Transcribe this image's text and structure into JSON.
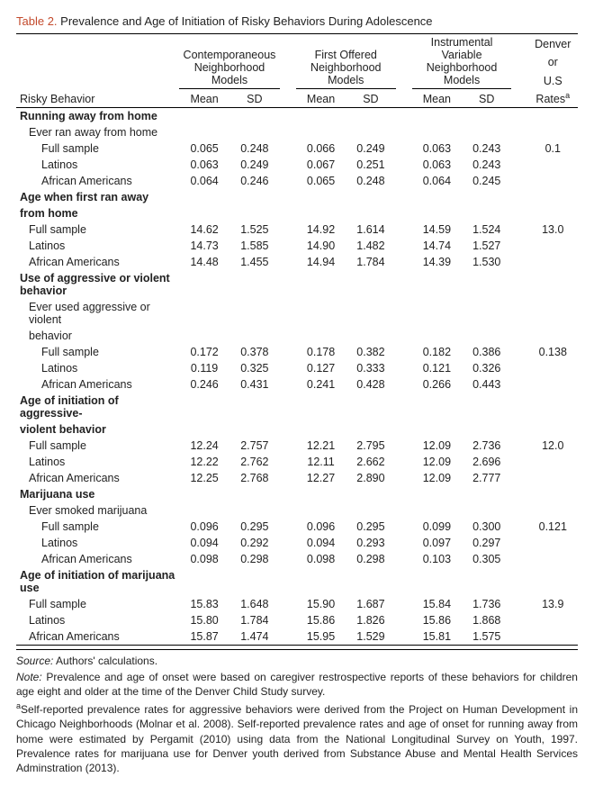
{
  "title_label": "Table 2.",
  "title_text": "Prevalence and Age of Initiation of Risky Behaviors During Adolescence",
  "col_group_1": "Contemporaneous Neighborhood Models",
  "col_group_2": "First Offered Neighborhood Models",
  "col_group_3": "Instrumental Variable Neighborhood Models",
  "col_group_4a": "Denver",
  "col_group_4b": "or",
  "col_group_4c": "U.S",
  "col_group_4d": "Rates",
  "rowhead": "Risky Behavior",
  "mean": "Mean",
  "sd": "SD",
  "sections": {
    "run": {
      "head": "Running away from home",
      "sub": "Ever ran away from home",
      "rows": [
        {
          "l": "Full sample",
          "m1": "0.065",
          "s1": "0.248",
          "m2": "0.066",
          "s2": "0.249",
          "m3": "0.063",
          "s3": "0.243",
          "r": "0.1"
        },
        {
          "l": "Latinos",
          "m1": "0.063",
          "s1": "0.249",
          "m2": "0.067",
          "s2": "0.251",
          "m3": "0.063",
          "s3": "0.243",
          "r": ""
        },
        {
          "l": "African Americans",
          "m1": "0.064",
          "s1": "0.246",
          "m2": "0.065",
          "s2": "0.248",
          "m3": "0.064",
          "s3": "0.245",
          "r": ""
        }
      ]
    },
    "agerun": {
      "head1": "Age when first ran away",
      "head2": "from home",
      "rows": [
        {
          "l": "Full sample",
          "m1": "14.62",
          "s1": "1.525",
          "m2": "14.92",
          "s2": "1.614",
          "m3": "14.59",
          "s3": "1.524",
          "r": "13.0"
        },
        {
          "l": "Latinos",
          "m1": "14.73",
          "s1": "1.585",
          "m2": "14.90",
          "s2": "1.482",
          "m3": "14.74",
          "s3": "1.527",
          "r": ""
        },
        {
          "l": "African Americans",
          "m1": "14.48",
          "s1": "1.455",
          "m2": "14.94",
          "s2": "1.784",
          "m3": "14.39",
          "s3": "1.530",
          "r": ""
        }
      ]
    },
    "agg": {
      "head": "Use of aggressive or violent behavior",
      "sub1": "Ever used aggressive or violent",
      "sub2": "behavior",
      "rows": [
        {
          "l": "Full sample",
          "m1": "0.172",
          "s1": "0.378",
          "m2": "0.178",
          "s2": "0.382",
          "m3": "0.182",
          "s3": "0.386",
          "r": "0.138"
        },
        {
          "l": "Latinos",
          "m1": "0.119",
          "s1": "0.325",
          "m2": "0.127",
          "s2": "0.333",
          "m3": "0.121",
          "s3": "0.326",
          "r": ""
        },
        {
          "l": "African Americans",
          "m1": "0.246",
          "s1": "0.431",
          "m2": "0.241",
          "s2": "0.428",
          "m3": "0.266",
          "s3": "0.443",
          "r": ""
        }
      ]
    },
    "ageagg": {
      "head1": "Age of initiation of aggressive-",
      "head2": "violent behavior",
      "rows": [
        {
          "l": "Full sample",
          "m1": "12.24",
          "s1": "2.757",
          "m2": "12.21",
          "s2": "2.795",
          "m3": "12.09",
          "s3": "2.736",
          "r": "12.0"
        },
        {
          "l": "Latinos",
          "m1": "12.22",
          "s1": "2.762",
          "m2": "12.11",
          "s2": "2.662",
          "m3": "12.09",
          "s3": "2.696",
          "r": ""
        },
        {
          "l": "African Americans",
          "m1": "12.25",
          "s1": "2.768",
          "m2": "12.27",
          "s2": "2.890",
          "m3": "12.09",
          "s3": "2.777",
          "r": ""
        }
      ]
    },
    "mj": {
      "head": "Marijuana use",
      "sub": "Ever smoked marijuana",
      "rows": [
        {
          "l": "Full sample",
          "m1": "0.096",
          "s1": "0.295",
          "m2": "0.096",
          "s2": "0.295",
          "m3": "0.099",
          "s3": "0.300",
          "r": "0.121"
        },
        {
          "l": "Latinos",
          "m1": "0.094",
          "s1": "0.292",
          "m2": "0.094",
          "s2": "0.293",
          "m3": "0.097",
          "s3": "0.297",
          "r": ""
        },
        {
          "l": "African Americans",
          "m1": "0.098",
          "s1": "0.298",
          "m2": "0.098",
          "s2": "0.298",
          "m3": "0.103",
          "s3": "0.305",
          "r": ""
        }
      ]
    },
    "agemj": {
      "head": "Age of initiation of marijuana use",
      "rows": [
        {
          "l": "Full sample",
          "m1": "15.83",
          "s1": "1.648",
          "m2": "15.90",
          "s2": "1.687",
          "m3": "15.84",
          "s3": "1.736",
          "r": "13.9"
        },
        {
          "l": "Latinos",
          "m1": "15.80",
          "s1": "1.784",
          "m2": "15.86",
          "s2": "1.826",
          "m3": "15.86",
          "s3": "1.868",
          "r": ""
        },
        {
          "l": "African Americans",
          "m1": "15.87",
          "s1": "1.474",
          "m2": "15.95",
          "s2": "1.529",
          "m3": "15.81",
          "s3": "1.575",
          "r": ""
        }
      ]
    }
  },
  "foot_source_label": "Source:",
  "foot_source": "Authors' calculations.",
  "foot_note_label": "Note:",
  "foot_note": "Prevalence and age of onset were based on caregiver restrospective reports of these behaviors for children age eight and older at the time of the Denver Child Study survey.",
  "foot_a": "Self-reported prevalence rates for aggressive behaviors were derived from the Project on Human Development in Chicago Neighborhoods (Molnar et al. 2008). Self-reported prevalence rates and age of onset for running away from home were estimated by Pergamit (2010) using data from the National Longitudinal Survey on Youth, 1997. Prevalence rates for marijuana use for Denver youth derived from Substance Abuse and Mental Health Services Adminstration (2013)."
}
